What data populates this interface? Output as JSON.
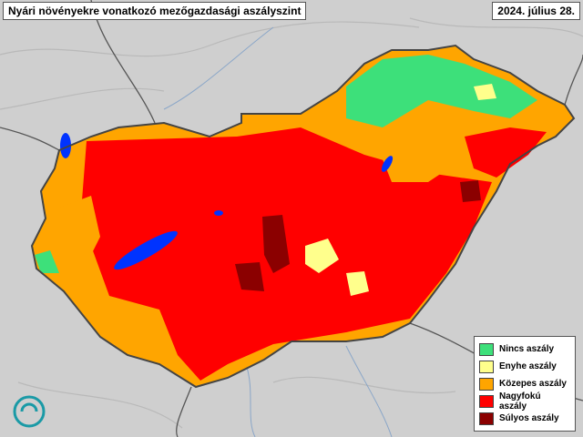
{
  "title": "Nyári növényekre vonatkozó mezőgazdasági aszályszint",
  "date": "2024. július 28.",
  "legend": [
    {
      "label": "Nincs aszály",
      "color": "#3de07a"
    },
    {
      "label": "Enyhe aszály",
      "color": "#ffff8c"
    },
    {
      "label": "Közepes aszály",
      "color": "#ffa500"
    },
    {
      "label": "Nagyfokú aszály",
      "color": "#ff0000"
    },
    {
      "label": "Súlyos aszály",
      "color": "#8b0000"
    }
  ]
}
